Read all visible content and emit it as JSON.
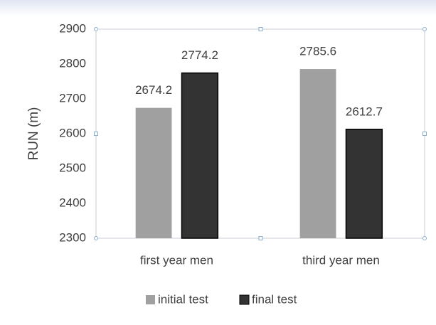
{
  "chart_data": {
    "type": "bar",
    "categories": [
      "first year men",
      "third year men"
    ],
    "series": [
      {
        "name": "initial test",
        "color": "#a0a0a0",
        "values": [
          2674.2,
          2785.6
        ]
      },
      {
        "name": "final test",
        "color": "#333333",
        "values": [
          2774.2,
          2612.7
        ]
      }
    ],
    "ylabel": "RUN (m)",
    "ylim": [
      2300,
      2900
    ],
    "yticks": [
      2300,
      2400,
      2500,
      2600,
      2700,
      2800,
      2900
    ],
    "grid": false,
    "legend": "bottom"
  }
}
